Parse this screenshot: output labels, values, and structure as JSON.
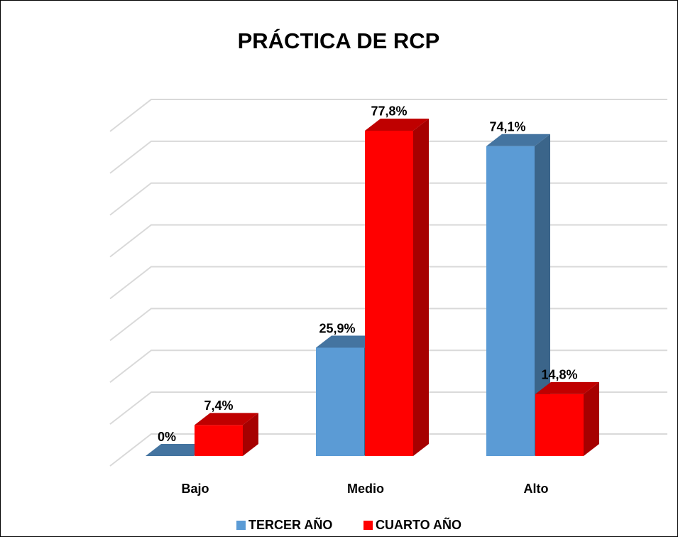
{
  "chart_data": {
    "type": "bar3d",
    "title": "PRÁCTICA DE RCP",
    "categories": [
      "Bajo",
      "Medio",
      "Alto"
    ],
    "series": [
      {
        "name": "TERCER AÑO",
        "color": "#5b9bd5",
        "values": [
          0,
          25.9,
          74.1
        ],
        "value_labels": [
          "0%",
          "25,9%",
          "74,1%"
        ]
      },
      {
        "name": "CUARTO AÑO",
        "color": "#ff0000",
        "values": [
          7.4,
          77.8,
          14.8
        ],
        "value_labels": [
          "7,4%",
          "77,8%",
          "14,8%"
        ]
      }
    ],
    "ylim": [
      0,
      80
    ],
    "yticks": [
      0,
      10,
      20,
      30,
      40,
      50,
      60,
      70,
      80
    ],
    "grid": true,
    "legend": "bottom"
  }
}
